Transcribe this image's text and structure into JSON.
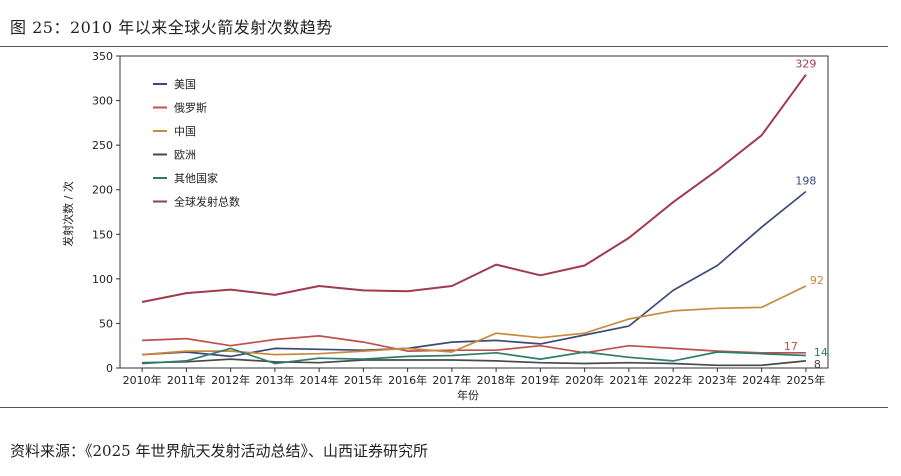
{
  "figure_title": "图 25：2010 年以来全球火箭发射次数趋势",
  "source_note": "资料来源：《2025 年世界航天发射活动总结》、山西证券研究所",
  "chart_data": {
    "type": "line",
    "xlabel": "年份",
    "ylabel": "发射次数 / 次",
    "ylim": [
      0,
      350
    ],
    "yticks": [
      0,
      50,
      100,
      150,
      200,
      250,
      300,
      350
    ],
    "grid": false,
    "legend_position": "top-left",
    "categories": [
      "2010年",
      "2011年",
      "2012年",
      "2013年",
      "2014年",
      "2015年",
      "2016年",
      "2017年",
      "2018年",
      "2019年",
      "2020年",
      "2021年",
      "2022年",
      "2023年",
      "2024年",
      "2025年"
    ],
    "series": [
      {
        "name": "美国",
        "color": "#3c4a7a",
        "values": [
          15,
          18,
          13,
          22,
          21,
          20,
          22,
          29,
          31,
          27,
          37,
          47,
          87,
          115,
          158,
          198
        ]
      },
      {
        "name": "俄罗斯",
        "color": "#c0504d",
        "values": [
          31,
          33,
          25,
          32,
          36,
          29,
          19,
          20,
          20,
          25,
          17,
          25,
          22,
          19,
          17,
          17
        ]
      },
      {
        "name": "中国",
        "color": "#c78a3a",
        "values": [
          15,
          19,
          19,
          15,
          16,
          19,
          22,
          18,
          39,
          34,
          39,
          55,
          64,
          67,
          68,
          92
        ]
      },
      {
        "name": "欧洲",
        "color": "#4a4a4a",
        "values": [
          6,
          7,
          10,
          7,
          6,
          9,
          9,
          9,
          8,
          6,
          5,
          6,
          5,
          3,
          3,
          8
        ]
      },
      {
        "name": "其他国家",
        "color": "#2e7d6e",
        "values": [
          5,
          8,
          22,
          5,
          11,
          10,
          13,
          14,
          17,
          10,
          18,
          12,
          8,
          18,
          16,
          14
        ]
      },
      {
        "name": "全球发射总数",
        "color": "#a23a4e",
        "values": [
          74,
          84,
          88,
          82,
          92,
          87,
          86,
          92,
          116,
          104,
          115,
          146,
          186,
          222,
          261,
          329
        ]
      }
    ],
    "end_labels": [
      {
        "series": "全球发射总数",
        "text": "329"
      },
      {
        "series": "美国",
        "text": "198"
      },
      {
        "series": "中国",
        "text": "92"
      },
      {
        "series": "俄罗斯",
        "text": "17"
      },
      {
        "series": "其他国家",
        "text": "14"
      },
      {
        "series": "欧洲",
        "text": "8"
      }
    ]
  }
}
